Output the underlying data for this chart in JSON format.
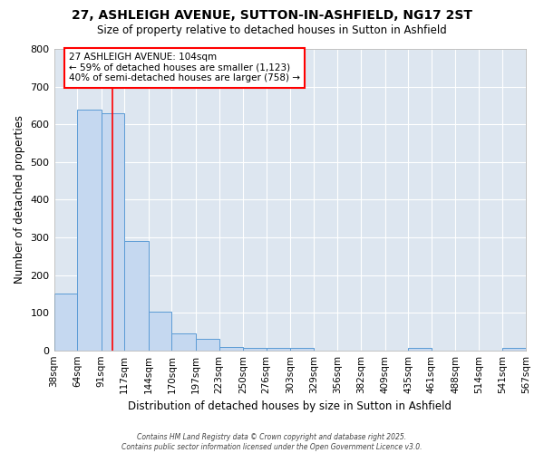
{
  "title": "27, ASHLEIGH AVENUE, SUTTON-IN-ASHFIELD, NG17 2ST",
  "subtitle": "Size of property relative to detached houses in Sutton in Ashfield",
  "xlabel": "Distribution of detached houses by size in Sutton in Ashfield",
  "ylabel": "Number of detached properties",
  "bar_color": "#c5d8f0",
  "bar_edge_color": "#5b9bd5",
  "plot_bg_color": "#dde6f0",
  "fig_bg_color": "#ffffff",
  "grid_color": "#ffffff",
  "red_line_x": 104,
  "annotation_text": "27 ASHLEIGH AVENUE: 104sqm\n← 59% of detached houses are smaller (1,123)\n40% of semi-detached houses are larger (758) →",
  "bins": [
    38,
    64,
    91,
    117,
    144,
    170,
    197,
    223,
    250,
    276,
    303,
    329,
    356,
    382,
    409,
    435,
    461,
    488,
    514,
    541,
    567
  ],
  "counts": [
    150,
    640,
    630,
    290,
    102,
    45,
    30,
    10,
    7,
    7,
    7,
    0,
    0,
    0,
    0,
    7,
    0,
    0,
    0,
    7
  ],
  "ylim": [
    0,
    800
  ],
  "yticks": [
    0,
    100,
    200,
    300,
    400,
    500,
    600,
    700,
    800
  ],
  "footer": "Contains HM Land Registry data © Crown copyright and database right 2025.\nContains public sector information licensed under the Open Government Licence v3.0."
}
